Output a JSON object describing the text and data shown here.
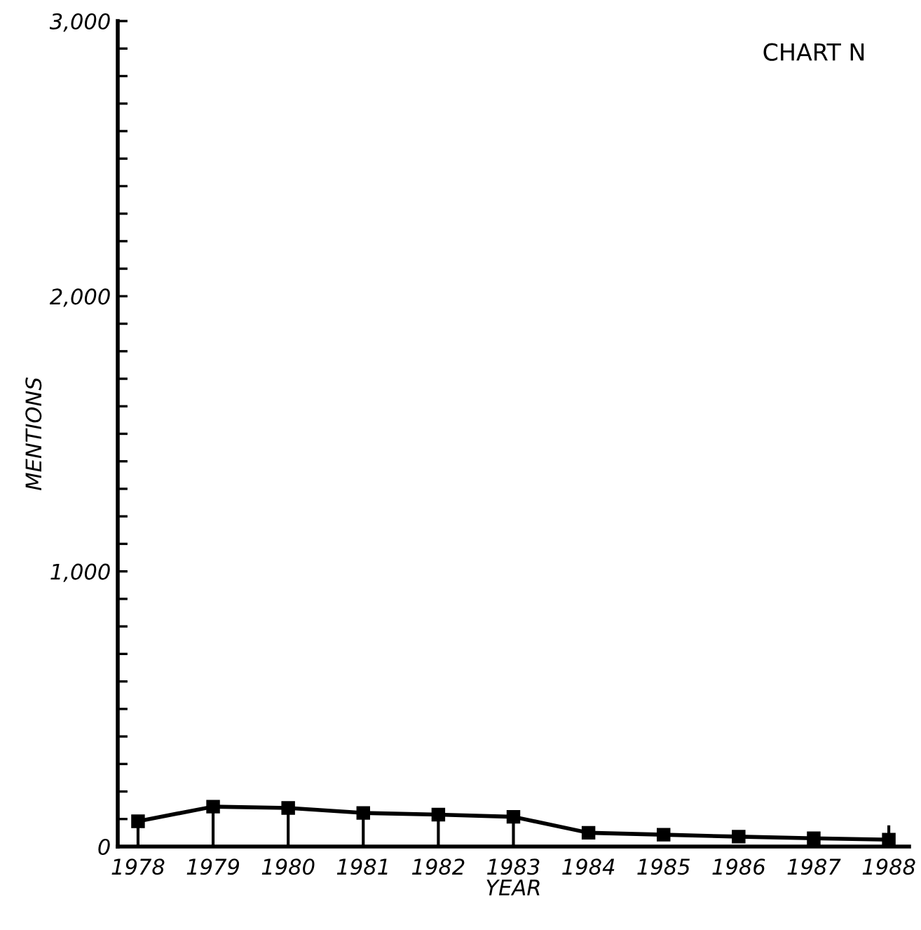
{
  "chart_data": {
    "type": "line",
    "xlabel": "YEAR",
    "ylabel": "MENTIONS",
    "annotations": [
      "CHART N"
    ],
    "x": [
      1978,
      1979,
      1980,
      1981,
      1982,
      1983,
      1984,
      1985,
      1986,
      1987,
      1988
    ],
    "series": [
      {
        "color": "#000000",
        "values": [
          92,
          145,
          140,
          122,
          116,
          108,
          50,
          43,
          36,
          30,
          25
        ],
        "errors": [
          [
            0,
            92
          ],
          [
            0,
            145
          ],
          [
            0,
            140
          ],
          [
            0,
            122
          ],
          [
            0,
            116
          ],
          [
            0,
            108
          ],
          null,
          null,
          null,
          null,
          [
            0,
            77
          ]
        ]
      }
    ],
    "xlim": [
      1977.73,
      1988.27
    ],
    "xticks": [
      1978,
      1979,
      1980,
      1981,
      1982,
      1983,
      1984,
      1985,
      1986,
      1987,
      1988
    ],
    "ylim": [
      0,
      3000
    ],
    "yticks": [
      {
        "value": 0,
        "label": "0"
      },
      {
        "value": 100,
        "label": null
      },
      {
        "value": 200,
        "label": null
      },
      {
        "value": 300,
        "label": null
      },
      {
        "value": 400,
        "label": null
      },
      {
        "value": 500,
        "label": null
      },
      {
        "value": 600,
        "label": null
      },
      {
        "value": 700,
        "label": null
      },
      {
        "value": 800,
        "label": null
      },
      {
        "value": 900,
        "label": null
      },
      {
        "value": 1000,
        "label": "1,000"
      },
      {
        "value": 1100,
        "label": null
      },
      {
        "value": 1200,
        "label": null
      },
      {
        "value": 1300,
        "label": null
      },
      {
        "value": 1400,
        "label": null
      },
      {
        "value": 1500,
        "label": null
      },
      {
        "value": 1600,
        "label": null
      },
      {
        "value": 1700,
        "label": null
      },
      {
        "value": 1800,
        "label": null
      },
      {
        "value": 1900,
        "label": null
      },
      {
        "value": 2000,
        "label": "2,000"
      },
      {
        "value": 2100,
        "label": null
      },
      {
        "value": 2200,
        "label": null
      },
      {
        "value": 2300,
        "label": null
      },
      {
        "value": 2400,
        "label": null
      },
      {
        "value": 2500,
        "label": null
      },
      {
        "value": 2600,
        "label": null
      },
      {
        "value": 2700,
        "label": null
      },
      {
        "value": 2800,
        "label": null
      },
      {
        "value": 2900,
        "label": null
      },
      {
        "value": 3000,
        "label": "3,000"
      }
    ],
    "marker": "square",
    "line_style": "solid",
    "grid": false,
    "legend": false
  }
}
